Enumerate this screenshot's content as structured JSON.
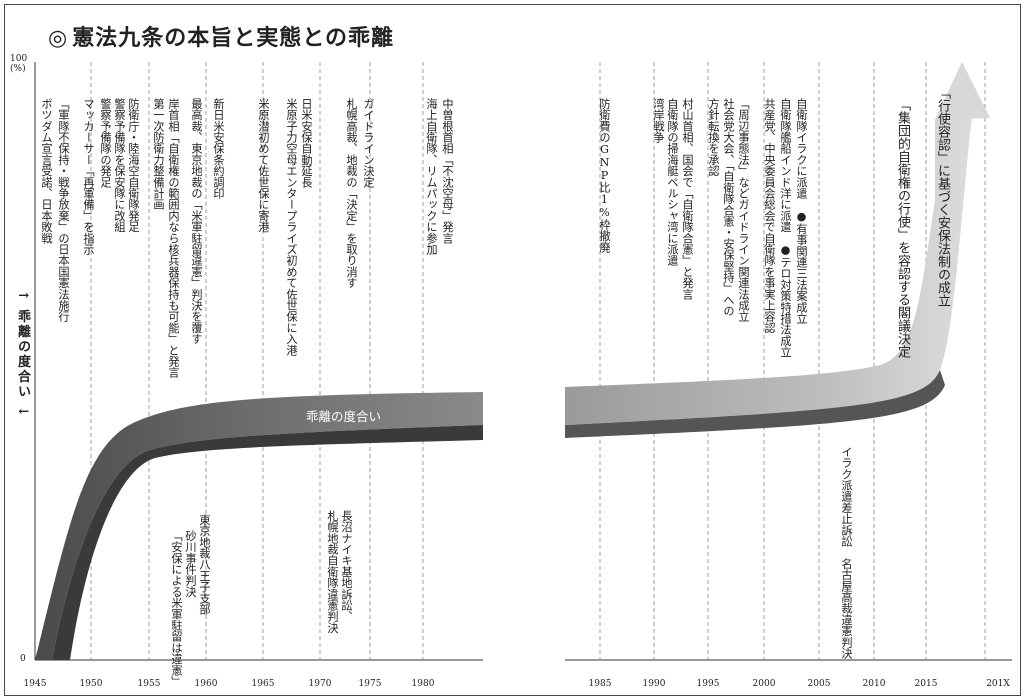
{
  "title": "憲法九条の本旨と実態との乖離",
  "title_mark": "◎",
  "y_axis": {
    "top_label": "100",
    "top_unit": "(%)",
    "bottom_label": "0",
    "label": "↑ 乖離の度合い ↓"
  },
  "band_label": "乖離の度合い",
  "x_ticks_left": [
    "1945",
    "1950",
    "1955",
    "1960",
    "1965",
    "1970",
    "1975",
    "1980"
  ],
  "x_ticks_right": [
    "1985",
    "1990",
    "1995",
    "2000",
    "2005",
    "2010",
    "2015",
    "201X"
  ],
  "events": [
    "ポツダム宣言受諾、日本敗戦",
    "「軍隊不保持・戦争放棄」の日本国憲法施行",
    "マッカーサー「再軍備」を指示",
    "警察予備隊の発足",
    "警察予備隊を保安隊に改組",
    "防衛庁・陸海空自衛隊発足",
    "第一次防衛力整備計画",
    "岸首相「自衛権の範囲内なら核兵器保持も可能」と発言",
    "最高裁、東京地裁の「米軍駐留違憲」判決を覆す",
    "新日米安保条約調印",
    "米原潜初めて佐世保に寄港",
    "米原子力空母エンタープライズ初めて佐世保に入港",
    "日米安保自動延長",
    "札幌高裁、地裁の「決定」を取り消す",
    "ガイドライン決定",
    "海上自衛隊、リムパックに参加",
    "中曽根首相「不沈空母」発言",
    "防衛費のGNP比1%枠撤廃",
    "湾岸戦争",
    "自衛隊の掃海艇ペルシャ湾に派遣",
    "村山首相、国会で「自衛隊合憲」と発言",
    "方針転換を承認",
    "社会党大会、「自衛隊合憲・安保堅持」への",
    "「周辺事態法」などガイドライン関連法成立",
    "共産党、中央委員会総会で自衛隊を事実上容認",
    "自衛隊艦船インド洋に派遣　●テロ対策特措法成立",
    "自衛隊イラクに派遣　●有事関連三法案成立",
    "「集団的自衛権の行使」を容認する閣議決定",
    "「行使容認」に基づく安保法制の成立"
  ],
  "court_events": [
    "東京地裁八王子支部",
    "砂川事件判決",
    "「安保による米軍駐留は違憲」",
    "長沼ナイキ基地訴訟、",
    "札幌地裁自衛隊違憲判決",
    "イラク派遣差止訴訟　名古屋高裁違憲判決"
  ]
}
